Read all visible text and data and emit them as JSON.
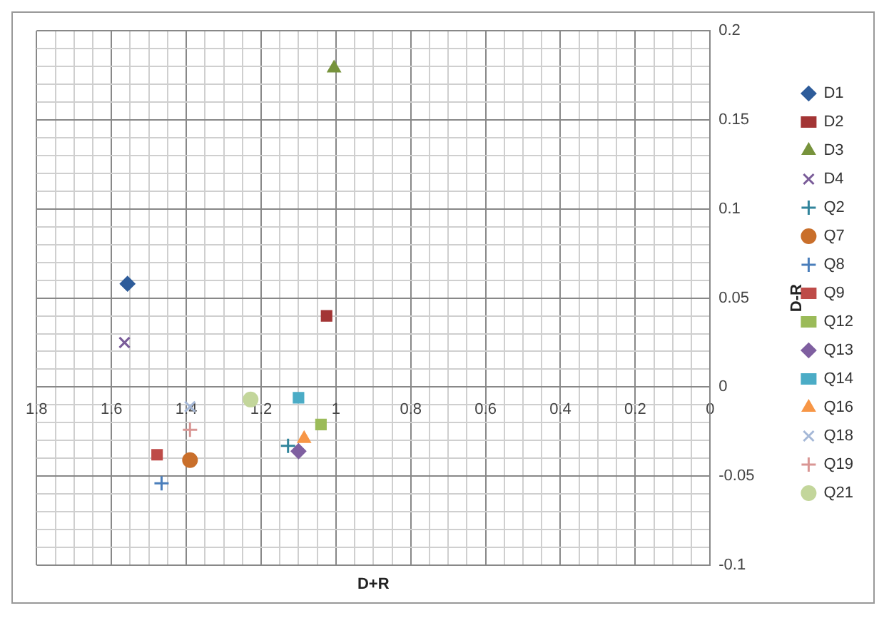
{
  "chart_data": {
    "type": "scatter",
    "xlabel": "D+R",
    "ylabel": "D-R",
    "xlim": [
      1.8,
      0
    ],
    "ylim": [
      -0.1,
      0.2
    ],
    "xticks": [
      1.8,
      {
        "value": 1.75,
        "label": null
      },
      {
        "value": 1.7,
        "label": null
      },
      {
        "value": 1.65,
        "label": null
      },
      1.6,
      {
        "value": 1.55,
        "label": null
      },
      {
        "value": 1.5,
        "label": null
      },
      {
        "value": 1.45,
        "label": null
      },
      1.4,
      {
        "value": 1.35,
        "label": null
      },
      {
        "value": 1.3,
        "label": null
      },
      {
        "value": 1.25,
        "label": null
      },
      1.2,
      {
        "value": 1.15,
        "label": null
      },
      {
        "value": 1.1,
        "label": null
      },
      {
        "value": 1.05,
        "label": null
      },
      1,
      {
        "value": 0.95,
        "label": null
      },
      {
        "value": 0.9,
        "label": null
      },
      {
        "value": 0.85,
        "label": null
      },
      0.8,
      {
        "value": 0.75,
        "label": null
      },
      {
        "value": 0.7,
        "label": null
      },
      {
        "value": 0.65,
        "label": null
      },
      0.6,
      {
        "value": 0.55,
        "label": null
      },
      {
        "value": 0.5,
        "label": null
      },
      {
        "value": 0.45,
        "label": null
      },
      0.4,
      {
        "value": 0.35,
        "label": null
      },
      {
        "value": 0.3,
        "label": null
      },
      {
        "value": 0.25,
        "label": null
      },
      0.2,
      {
        "value": 0.15,
        "label": null
      },
      {
        "value": 0.1,
        "label": null
      },
      {
        "value": 0.05,
        "label": null
      },
      0
    ],
    "yticks": [
      -0.1,
      {
        "value": -0.09,
        "label": null
      },
      {
        "value": -0.08,
        "label": null
      },
      {
        "value": -0.07,
        "label": null
      },
      {
        "value": -0.06,
        "label": null
      },
      -0.05,
      {
        "value": -0.04,
        "label": null
      },
      {
        "value": -0.03,
        "label": null
      },
      {
        "value": -0.02,
        "label": null
      },
      {
        "value": -0.01,
        "label": null
      },
      0,
      {
        "value": 0.01,
        "label": null
      },
      {
        "value": 0.02,
        "label": null
      },
      {
        "value": 0.03,
        "label": null
      },
      {
        "value": 0.04,
        "label": null
      },
      0.05,
      {
        "value": 0.06,
        "label": null
      },
      {
        "value": 0.07,
        "label": null
      },
      {
        "value": 0.08,
        "label": null
      },
      {
        "value": 0.09,
        "label": null
      },
      0.1,
      {
        "value": 0.11,
        "label": null
      },
      {
        "value": 0.12,
        "label": null
      },
      {
        "value": 0.13,
        "label": null
      },
      {
        "value": 0.14,
        "label": null
      },
      0.15,
      {
        "value": 0.16,
        "label": null
      },
      {
        "value": 0.17,
        "label": null
      },
      {
        "value": 0.18,
        "label": null
      },
      {
        "value": 0.19,
        "label": null
      },
      0.2
    ],
    "grid": true,
    "legend": "right",
    "series": [
      {
        "name": "D1",
        "color": "#2e5c9a",
        "marker": "diamond",
        "x": [
          1.557
        ],
        "values": [
          0.058
        ]
      },
      {
        "name": "D2",
        "color": "#a33535",
        "marker": "square",
        "x": [
          1.025
        ],
        "values": [
          0.04
        ]
      },
      {
        "name": "D3",
        "color": "#77933c",
        "marker": "triangle",
        "x": [
          1.005
        ],
        "values": [
          0.179
        ]
      },
      {
        "name": "D4",
        "color": "#7a5c99",
        "marker": "x",
        "x": [
          1.565
        ],
        "values": [
          0.025
        ]
      },
      {
        "name": "Q2",
        "color": "#31849b",
        "marker": "cross",
        "x": [
          1.128
        ],
        "values": [
          -0.033
        ]
      },
      {
        "name": "Q7",
        "color": "#c96f2b",
        "marker": "circle",
        "x": [
          1.39
        ],
        "values": [
          -0.041
        ]
      },
      {
        "name": "Q8",
        "color": "#4a7ebb",
        "marker": "cross",
        "x": [
          1.466
        ],
        "values": [
          -0.054
        ]
      },
      {
        "name": "Q9",
        "color": "#be4b48",
        "marker": "square",
        "x": [
          1.478
        ],
        "values": [
          -0.038
        ]
      },
      {
        "name": "Q12",
        "color": "#9bbb59",
        "marker": "square",
        "x": [
          1.04
        ],
        "values": [
          -0.021
        ]
      },
      {
        "name": "Q13",
        "color": "#7f5fa0",
        "marker": "diamond",
        "x": [
          1.1
        ],
        "values": [
          -0.036
        ]
      },
      {
        "name": "Q14",
        "color": "#4bacc6",
        "marker": "square",
        "x": [
          1.1
        ],
        "values": [
          -0.006
        ]
      },
      {
        "name": "Q16",
        "color": "#f79646",
        "marker": "triangle",
        "x": [
          1.085
        ],
        "values": [
          -0.029
        ]
      },
      {
        "name": "Q18",
        "color": "#a5b8d7",
        "marker": "x",
        "x": [
          1.39
        ],
        "values": [
          -0.011
        ]
      },
      {
        "name": "Q19",
        "color": "#d99694",
        "marker": "cross",
        "x": [
          1.39
        ],
        "values": [
          -0.024
        ]
      },
      {
        "name": "Q21",
        "color": "#c3d69b",
        "marker": "circle",
        "x": [
          1.228
        ],
        "values": [
          -0.007
        ]
      }
    ]
  }
}
